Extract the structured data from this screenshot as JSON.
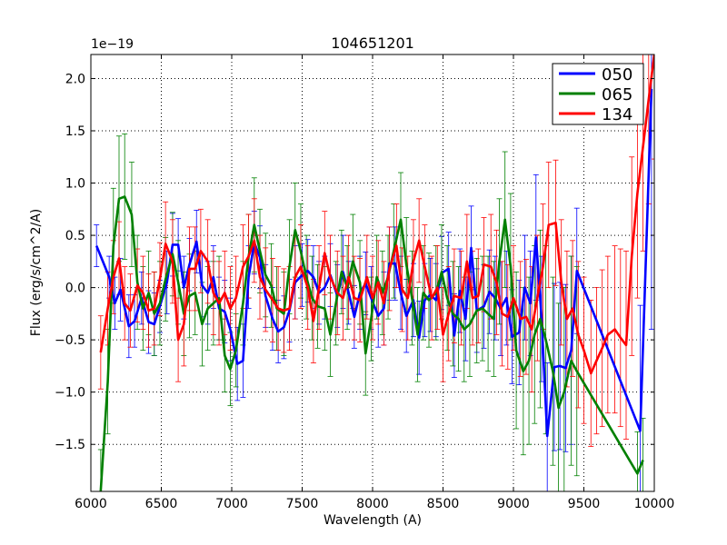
{
  "chart_data": {
    "type": "line",
    "title": "104651201",
    "xlabel": "Wavelength (A)",
    "ylabel": "Flux (erg/s/cm^2/A)",
    "y_offset_label": "1e−19",
    "xlim": [
      6000,
      10000
    ],
    "ylim": [
      -1.95,
      2.23
    ],
    "xticks": [
      6000,
      6500,
      7000,
      7500,
      8000,
      8500,
      9000,
      9500,
      10000
    ],
    "xtick_labels": [
      "6000",
      "6500",
      "7000",
      "7500",
      "8000",
      "8500",
      "9000",
      "9500",
      "10000"
    ],
    "yticks": [
      -1.5,
      -1.0,
      -0.5,
      0.0,
      0.5,
      1.0,
      1.5,
      2.0
    ],
    "ytick_labels": [
      "−1.5",
      "−1.0",
      "−0.5",
      "0.0",
      "0.5",
      "1.0",
      "1.5",
      "2.0"
    ],
    "grid": true,
    "legend_position": "top-right",
    "series": [
      {
        "name": "050",
        "color": "#0000ff",
        "x": [
          6040,
          6130,
          6170,
          6210,
          6270,
          6310,
          6360,
          6410,
          6450,
          6490,
          6540,
          6580,
          6620,
          6660,
          6700,
          6750,
          6790,
          6830,
          6870,
          6910,
          6950,
          6990,
          7040,
          7080,
          7120,
          7160,
          7200,
          7240,
          7290,
          7330,
          7370,
          7410,
          7450,
          7500,
          7540,
          7580,
          7620,
          7660,
          7700,
          7750,
          7790,
          7830,
          7870,
          7910,
          7950,
          7990,
          8040,
          8080,
          8120,
          8160,
          8200,
          8240,
          8290,
          8330,
          8370,
          8410,
          8450,
          8490,
          8540,
          8580,
          8620,
          8660,
          8700,
          8740,
          8790,
          8830,
          8870,
          8910,
          8950,
          8990,
          9040,
          9080,
          9120,
          9160,
          9200,
          9240,
          9290,
          9330,
          9370,
          9410,
          9450,
          9900,
          9980
        ],
        "y": [
          0.4,
          0.1,
          -0.15,
          -0.02,
          -0.37,
          -0.32,
          -0.1,
          -0.33,
          -0.35,
          -0.18,
          0.05,
          0.41,
          0.41,
          0.0,
          0.22,
          0.44,
          0.02,
          -0.05,
          0.1,
          -0.2,
          -0.23,
          -0.4,
          -0.73,
          -0.7,
          0.1,
          0.43,
          0.29,
          -0.08,
          -0.3,
          -0.42,
          -0.38,
          -0.22,
          0.05,
          0.12,
          0.16,
          0.1,
          -0.05,
          0.0,
          0.12,
          -0.08,
          0.15,
          -0.05,
          -0.28,
          -0.05,
          0.04,
          -0.1,
          -0.27,
          -0.2,
          0.23,
          0.23,
          -0.05,
          -0.27,
          -0.12,
          -0.48,
          -0.12,
          -0.07,
          -0.12,
          0.14,
          0.18,
          -0.46,
          -0.03,
          -0.3,
          0.38,
          -0.22,
          -0.18,
          -0.04,
          -0.1,
          -0.2,
          -0.1,
          -0.47,
          -0.43,
          0.0,
          -0.15,
          0.48,
          -0.3,
          -1.42,
          -0.76,
          -0.75,
          -0.77,
          -0.6,
          0.16,
          -1.37,
          1.9
        ],
        "yerr": [
          0.2,
          0.2,
          0.25,
          0.3,
          0.3,
          0.25,
          0.25,
          0.3,
          0.3,
          0.25,
          0.3,
          0.3,
          0.25,
          0.3,
          0.25,
          0.3,
          0.3,
          0.3,
          0.3,
          0.3,
          0.3,
          0.3,
          0.35,
          0.35,
          0.3,
          0.3,
          0.3,
          0.3,
          0.3,
          0.3,
          0.3,
          0.3,
          0.35,
          0.3,
          0.3,
          0.3,
          0.3,
          0.3,
          0.3,
          0.3,
          0.35,
          0.3,
          0.3,
          0.35,
          0.3,
          0.3,
          0.3,
          0.35,
          0.35,
          0.35,
          0.35,
          0.35,
          0.35,
          0.35,
          0.35,
          0.35,
          0.35,
          0.35,
          0.35,
          0.4,
          0.4,
          0.4,
          0.4,
          0.4,
          0.4,
          0.4,
          0.4,
          0.45,
          0.45,
          0.45,
          0.5,
          0.5,
          0.5,
          0.6,
          0.6,
          0.7,
          0.8,
          0.8,
          0.8,
          0.9,
          0.6,
          1.2,
          2.3
        ]
      },
      {
        "name": "065",
        "color": "#008000",
        "x": [
          6070,
          6120,
          6160,
          6200,
          6240,
          6290,
          6330,
          6370,
          6410,
          6450,
          6490,
          6530,
          6580,
          6620,
          6660,
          6700,
          6740,
          6790,
          6830,
          6870,
          6910,
          6950,
          6990,
          7030,
          7080,
          7120,
          7160,
          7200,
          7240,
          7280,
          7320,
          7370,
          7410,
          7450,
          7490,
          7530,
          7570,
          7610,
          7660,
          7700,
          7740,
          7780,
          7820,
          7860,
          7910,
          7950,
          7990,
          8030,
          8070,
          8110,
          8150,
          8200,
          8240,
          8280,
          8320,
          8360,
          8400,
          8450,
          8490,
          8530,
          8570,
          8610,
          8650,
          8690,
          8740,
          8780,
          8820,
          8860,
          8900,
          8940,
          8980,
          9020,
          9070,
          9110,
          9150,
          9190,
          9230,
          9280,
          9320,
          9360,
          9410,
          9450,
          9880,
          9920
        ],
        "y": [
          -1.95,
          -0.9,
          0.4,
          0.85,
          0.87,
          0.7,
          0.05,
          -0.2,
          -0.05,
          -0.25,
          -0.15,
          0.08,
          0.32,
          0.05,
          -0.25,
          -0.08,
          -0.05,
          -0.35,
          -0.2,
          -0.15,
          -0.1,
          -0.65,
          -0.78,
          -0.6,
          -0.15,
          0.3,
          0.6,
          0.35,
          0.12,
          0.02,
          -0.2,
          -0.25,
          0.2,
          0.55,
          0.35,
          0.1,
          -0.1,
          -0.18,
          -0.2,
          -0.45,
          -0.15,
          0.15,
          0.0,
          0.25,
          0.05,
          -0.63,
          -0.3,
          0.1,
          -0.05,
          0.1,
          0.35,
          0.65,
          0.22,
          -0.1,
          -0.45,
          -0.05,
          -0.12,
          -0.05,
          0.15,
          -0.1,
          -0.25,
          -0.3,
          -0.4,
          -0.35,
          -0.22,
          -0.2,
          -0.25,
          -0.3,
          0.25,
          0.65,
          0.2,
          -0.6,
          -0.8,
          -0.7,
          -0.45,
          -0.3,
          -0.5,
          -0.8,
          -1.15,
          -1.0,
          -0.7,
          -0.8,
          -1.78,
          -1.65
        ],
        "yerr": [
          0.4,
          0.5,
          0.55,
          0.6,
          0.6,
          0.5,
          0.45,
          0.4,
          0.4,
          0.4,
          0.4,
          0.4,
          0.4,
          0.4,
          0.4,
          0.4,
          0.4,
          0.4,
          0.4,
          0.4,
          0.4,
          0.35,
          0.35,
          0.35,
          0.4,
          0.4,
          0.45,
          0.4,
          0.4,
          0.4,
          0.4,
          0.4,
          0.45,
          0.45,
          0.45,
          0.4,
          0.4,
          0.4,
          0.4,
          0.4,
          0.4,
          0.4,
          0.4,
          0.45,
          0.4,
          0.4,
          0.4,
          0.4,
          0.4,
          0.4,
          0.45,
          0.45,
          0.45,
          0.45,
          0.45,
          0.45,
          0.45,
          0.45,
          0.45,
          0.5,
          0.5,
          0.5,
          0.5,
          0.5,
          0.5,
          0.5,
          0.55,
          0.55,
          0.6,
          0.65,
          0.7,
          0.75,
          0.8,
          0.8,
          0.85,
          0.85,
          0.9,
          0.9,
          1.0,
          1.0,
          1.0,
          1.0,
          0.4,
          0.4
        ]
      },
      {
        "name": "134",
        "color": "#ff0000",
        "x": [
          6070,
          6120,
          6160,
          6200,
          6240,
          6280,
          6330,
          6370,
          6410,
          6450,
          6490,
          6530,
          6580,
          6620,
          6660,
          6700,
          6740,
          6780,
          6830,
          6870,
          6910,
          6950,
          6990,
          7030,
          7080,
          7120,
          7160,
          7200,
          7240,
          7290,
          7330,
          7370,
          7410,
          7450,
          7490,
          7540,
          7580,
          7620,
          7660,
          7700,
          7750,
          7790,
          7830,
          7870,
          7910,
          7960,
          8000,
          8040,
          8080,
          8120,
          8170,
          8210,
          8250,
          8290,
          8330,
          8370,
          8420,
          8460,
          8500,
          8540,
          8580,
          8630,
          8670,
          8710,
          8750,
          8790,
          8840,
          8880,
          8920,
          8960,
          9000,
          9050,
          9090,
          9130,
          9170,
          9210,
          9250,
          9300,
          9340,
          9380,
          9420,
          9460,
          9500,
          9550,
          9590,
          9630,
          9670,
          9720,
          9760,
          9800,
          9840,
          9880,
          9920,
          9960,
          10000
        ],
        "y": [
          -0.62,
          -0.2,
          0.1,
          0.28,
          -0.15,
          -0.22,
          0.02,
          -0.05,
          -0.22,
          -0.2,
          0.08,
          0.42,
          0.25,
          -0.5,
          -0.35,
          0.18,
          0.18,
          0.35,
          0.25,
          -0.05,
          -0.15,
          -0.05,
          -0.2,
          -0.1,
          0.2,
          0.3,
          0.45,
          0.1,
          -0.02,
          -0.12,
          -0.2,
          -0.22,
          -0.2,
          0.1,
          0.2,
          0.0,
          -0.32,
          0.0,
          0.33,
          0.1,
          -0.05,
          -0.1,
          0.1,
          -0.1,
          -0.12,
          0.1,
          -0.1,
          0.05,
          -0.15,
          0.18,
          0.4,
          -0.02,
          -0.1,
          0.25,
          0.45,
          0.2,
          -0.1,
          0.0,
          -0.45,
          -0.25,
          -0.08,
          -0.1,
          0.25,
          -0.1,
          -0.08,
          0.22,
          0.2,
          0.05,
          -0.25,
          -0.28,
          -0.1,
          -0.3,
          -0.28,
          -0.4,
          -0.1,
          0.2,
          0.6,
          0.62,
          0.05,
          -0.3,
          -0.2,
          -0.45,
          -0.6,
          -0.82,
          -0.7,
          -0.58,
          -0.45,
          -0.4,
          -0.48,
          -0.55,
          0.3,
          0.9,
          1.35,
          1.8,
          2.23
        ],
        "yerr": [
          0.35,
          0.35,
          0.35,
          0.35,
          0.35,
          0.35,
          0.35,
          0.35,
          0.35,
          0.35,
          0.35,
          0.4,
          0.4,
          0.4,
          0.4,
          0.4,
          0.4,
          0.4,
          0.4,
          0.4,
          0.4,
          0.4,
          0.4,
          0.4,
          0.4,
          0.4,
          0.4,
          0.4,
          0.4,
          0.4,
          0.4,
          0.4,
          0.4,
          0.4,
          0.4,
          0.4,
          0.4,
          0.4,
          0.4,
          0.4,
          0.4,
          0.4,
          0.4,
          0.4,
          0.4,
          0.4,
          0.4,
          0.4,
          0.4,
          0.4,
          0.4,
          0.4,
          0.4,
          0.4,
          0.4,
          0.4,
          0.4,
          0.4,
          0.45,
          0.45,
          0.45,
          0.45,
          0.45,
          0.45,
          0.45,
          0.45,
          0.5,
          0.5,
          0.5,
          0.5,
          0.5,
          0.55,
          0.55,
          0.6,
          0.6,
          0.6,
          0.6,
          0.6,
          0.6,
          0.65,
          0.65,
          0.7,
          0.7,
          0.7,
          0.7,
          0.75,
          0.75,
          0.8,
          0.85,
          0.9,
          0.95,
          1.0,
          1.0,
          1.0,
          1.0
        ]
      }
    ]
  }
}
